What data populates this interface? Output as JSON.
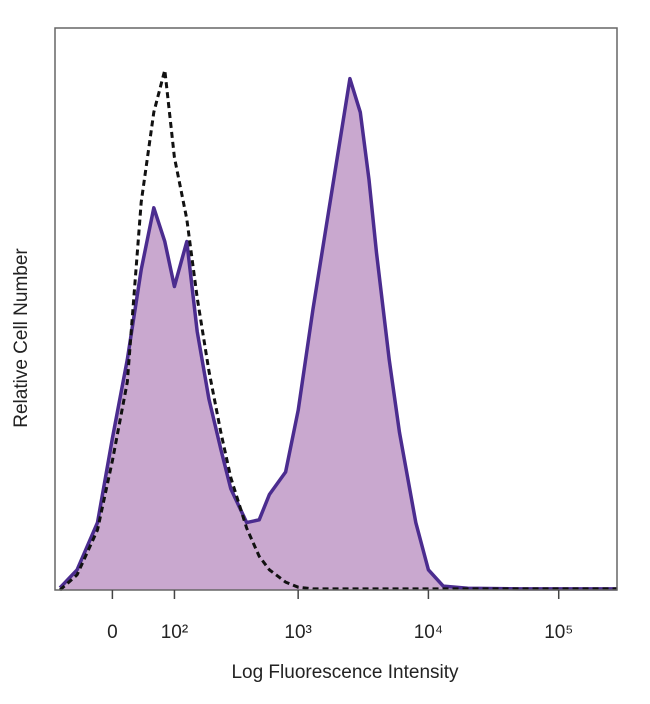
{
  "chart_data": {
    "type": "histogram-overlay",
    "xlabel": "Log Fluorescence Intensity",
    "ylabel": "Relative Cell Number",
    "xscale": "biexponential",
    "xlim": [
      -90,
      280000
    ],
    "ylim": [
      0,
      100
    ],
    "xticks": [
      0,
      {
        "value": 100,
        "label": "10²"
      },
      {
        "value": 1000,
        "label": "10³"
      },
      {
        "value": 10000,
        "label": "10⁴"
      },
      {
        "value": 100000,
        "label": "10⁵"
      }
    ],
    "x": [
      -80,
      -50,
      -20,
      0,
      20,
      40,
      60,
      80,
      100,
      130,
      160,
      200,
      250,
      300,
      400,
      500,
      600,
      800,
      1000,
      1300,
      1600,
      2000,
      2500,
      3000,
      3500,
      4000,
      5000,
      6000,
      8000,
      10000,
      13000,
      20000,
      50000,
      100000,
      280000
    ],
    "series": [
      {
        "style": "filled",
        "color": "#4b2c8f",
        "fill": "#c9a8cf",
        "values": [
          0.4,
          3.6,
          12,
          27,
          41,
          57,
          68,
          62,
          54,
          62,
          46,
          34,
          25,
          18,
          12,
          12.5,
          17,
          21,
          32,
          50,
          63,
          77,
          91,
          85,
          73,
          60,
          41,
          28,
          12,
          3.6,
          0.7,
          0.3,
          0.2,
          0.2,
          0.2
        ]
      },
      {
        "style": "dashed",
        "color": "#111111",
        "values": [
          0,
          2.7,
          10.7,
          23,
          37,
          69,
          85,
          92.5,
          77,
          66,
          52,
          39,
          28,
          20,
          11,
          6,
          3.6,
          1.4,
          0.5,
          0.2,
          0.2,
          0.2,
          0.2,
          0.2,
          0.2,
          0.2,
          0.2,
          0.2,
          0.2,
          0.2,
          0.2,
          0.2,
          0.2,
          0.2,
          0.2
        ]
      }
    ]
  }
}
